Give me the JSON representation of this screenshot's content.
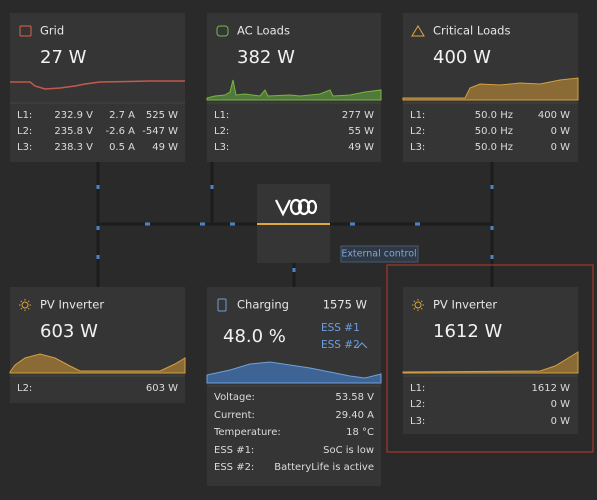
{
  "grid": {
    "title": "Grid",
    "value": "27 W",
    "rows": [
      [
        "L1:",
        "232.9 V",
        "2.7 A",
        "525 W"
      ],
      [
        "L2:",
        "235.8 V",
        "-2.6 A",
        "-547 W"
      ],
      [
        "L3:",
        "238.3 V",
        "0.5 A",
        "49 W"
      ]
    ]
  },
  "ac_loads": {
    "title": "AC Loads",
    "value": "382 W",
    "rows": [
      [
        "L1:",
        "277 W"
      ],
      [
        "L2:",
        "55 W"
      ],
      [
        "L3:",
        "49 W"
      ]
    ]
  },
  "critical_loads": {
    "title": "Critical Loads",
    "value": "400 W",
    "rows": [
      [
        "L1:",
        "50.0 Hz",
        "400 W"
      ],
      [
        "L2:",
        "50.0 Hz",
        "0 W"
      ],
      [
        "L3:",
        "50.0 Hz",
        "0 W"
      ]
    ]
  },
  "inverter": {
    "control_label": "External control"
  },
  "pv_inverter_left": {
    "title": "PV Inverter",
    "value": "603 W",
    "rows": [
      [
        "L2:",
        "603 W"
      ]
    ]
  },
  "charging": {
    "title": "Charging",
    "power": "1575 W",
    "value": "48.0 %",
    "ess_links": [
      "ESS #1",
      "ESS #2"
    ],
    "rows": [
      [
        "Voltage:",
        "53.58 V"
      ],
      [
        "Current:",
        "29.40 A"
      ],
      [
        "Temperature:",
        "18 °C"
      ],
      [
        "ESS #1:",
        "SoC is low"
      ],
      [
        "ESS #2:",
        "BatteryLife is active"
      ]
    ]
  },
  "pv_inverter_right": {
    "title": "PV Inverter",
    "value": "1612 W",
    "rows": [
      [
        "L1:",
        "1612 W"
      ],
      [
        "L2:",
        "0 W"
      ],
      [
        "L3:",
        "0 W"
      ]
    ]
  }
}
